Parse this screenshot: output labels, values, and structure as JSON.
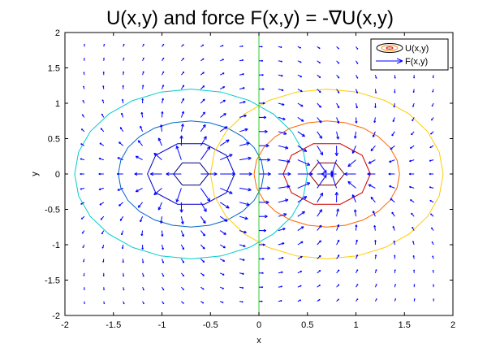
{
  "chart_data": {
    "type": "contour+quiver",
    "title": "U(x,y) and force F(x,y) = -∇U(x,y)",
    "xlabel": "x",
    "ylabel": "y",
    "xlim": [
      -2,
      2
    ],
    "ylim": [
      -2,
      2
    ],
    "xticks": [
      -2,
      -1.5,
      -1,
      -0.5,
      0,
      0.5,
      1,
      1.5,
      2
    ],
    "yticks": [
      -2,
      -1.5,
      -1,
      -0.5,
      0,
      0.5,
      1,
      1.5,
      2
    ],
    "xtick_labels": [
      "-2",
      "-1.5",
      "-1",
      "-0.5",
      "0",
      "0.5",
      "1",
      "1.5",
      "2"
    ],
    "ytick_labels": [
      "-2",
      "-1.5",
      "-1",
      "-0.5",
      "0",
      "0.5",
      "1",
      "1.5",
      "2"
    ],
    "grid": false,
    "legend": {
      "placement": "top-right",
      "entries": [
        {
          "label": "U(x,y)",
          "kind": "contour"
        },
        {
          "label": "F(x,y)",
          "kind": "arrow",
          "color": "#0000ff"
        }
      ]
    },
    "sources": [
      {
        "center": [
          -0.7,
          0
        ],
        "sign": -1
      },
      {
        "center": [
          0.7,
          0
        ],
        "sign": 1
      }
    ],
    "contours": [
      {
        "center": [
          -0.7,
          0
        ],
        "radius": 0.18,
        "color": "#00007f"
      },
      {
        "center": [
          -0.7,
          0
        ],
        "radius": 0.45,
        "color": "#0000cc"
      },
      {
        "center": [
          -0.7,
          0
        ],
        "radius": 0.75,
        "color": "#0066cc"
      },
      {
        "center": [
          -0.7,
          0
        ],
        "radius": 1.2,
        "color": "#00cccc"
      },
      {
        "center": [
          0.7,
          0
        ],
        "radius": 0.18,
        "color": "#7f0000"
      },
      {
        "center": [
          0.7,
          0
        ],
        "radius": 0.45,
        "color": "#cc0000"
      },
      {
        "center": [
          0.7,
          0
        ],
        "radius": 0.75,
        "color": "#ff6600"
      },
      {
        "center": [
          0.7,
          0
        ],
        "radius": 1.2,
        "color": "#ffcc00"
      },
      {
        "center": [
          0,
          0
        ],
        "radius": 0,
        "color": "#33cc33",
        "kind": "zero-line"
      }
    ],
    "quiver": {
      "x_range": [
        -1.8,
        1.8
      ],
      "y_range": [
        -1.8,
        1.8
      ],
      "step": 0.2,
      "color": "#0000ff"
    }
  }
}
